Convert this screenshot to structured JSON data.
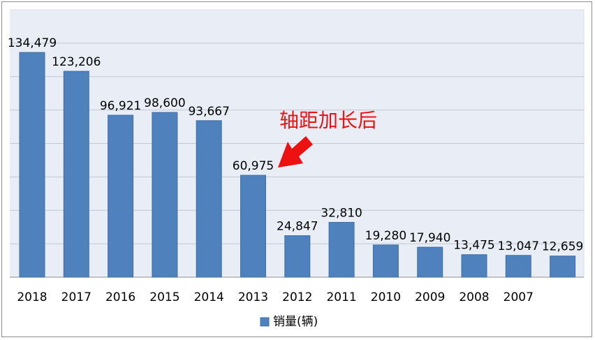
{
  "chart_data": {
    "type": "bar",
    "title": "",
    "xlabel": "",
    "ylabel": "",
    "categories": [
      "2018",
      "2017",
      "2016",
      "2015",
      "2014",
      "2013",
      "2012",
      "2011",
      "2010",
      "2009",
      "2008",
      "2007"
    ],
    "series": [
      {
        "name": "销量(辆)",
        "values": [
          134479,
          123206,
          96921,
          98600,
          93667,
          60975,
          24847,
          32810,
          19280,
          17940,
          13475,
          13047
        ],
        "data_labels": [
          "134,479",
          "123,206",
          "96,921",
          "98,600",
          "93,667",
          "60,975",
          "24,847",
          "32,810",
          "19,280",
          "17,940",
          "13,475",
          "13,047"
        ]
      }
    ],
    "extra_label": "12,659",
    "ylim": [
      0,
      160000
    ],
    "grid": true,
    "legend_position": "bottom",
    "annotation": {
      "text": "轴距加长后",
      "target_category": "2013",
      "color": "#ee1111"
    },
    "colors": {
      "bar": "#4f81bd",
      "bar_edge": "#3e6fa8",
      "plot_background": "#e9eef6",
      "grid": "#ffffff",
      "text": "#000000"
    }
  }
}
